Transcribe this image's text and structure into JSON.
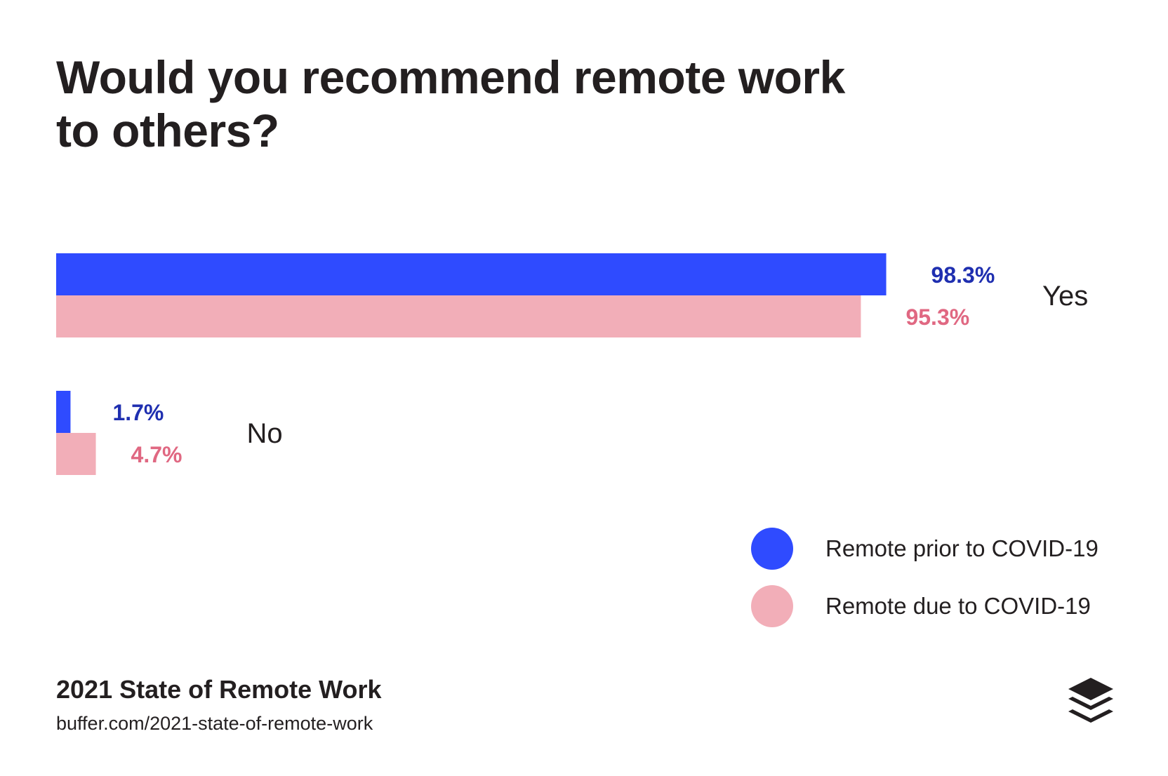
{
  "chart_data": {
    "type": "bar",
    "orientation": "horizontal",
    "title": "Would you recommend remote work to others?",
    "categories": [
      "Yes",
      "No"
    ],
    "series": [
      {
        "name": "Remote prior to COVID-19",
        "color": "#2f4bff",
        "label_color": "#1f2fb0",
        "values": [
          98.3,
          1.7
        ],
        "labels": [
          "98.3%",
          "1.7%"
        ]
      },
      {
        "name": "Remote due to COVID-19",
        "color": "#f2aeb8",
        "label_color": "#e06882",
        "values": [
          95.3,
          4.7
        ],
        "labels": [
          "95.3%",
          "4.7%"
        ]
      }
    ],
    "xlim": [
      0,
      100
    ],
    "grid": false,
    "axes_visible": false,
    "legend_position": "bottom-right",
    "value_labels": true
  },
  "footer": {
    "title": "2021 State of Remote Work",
    "url": "buffer.com/2021-state-of-remote-work"
  },
  "logo": {
    "icon": "buffer-stack-icon",
    "color": "#231f20"
  }
}
